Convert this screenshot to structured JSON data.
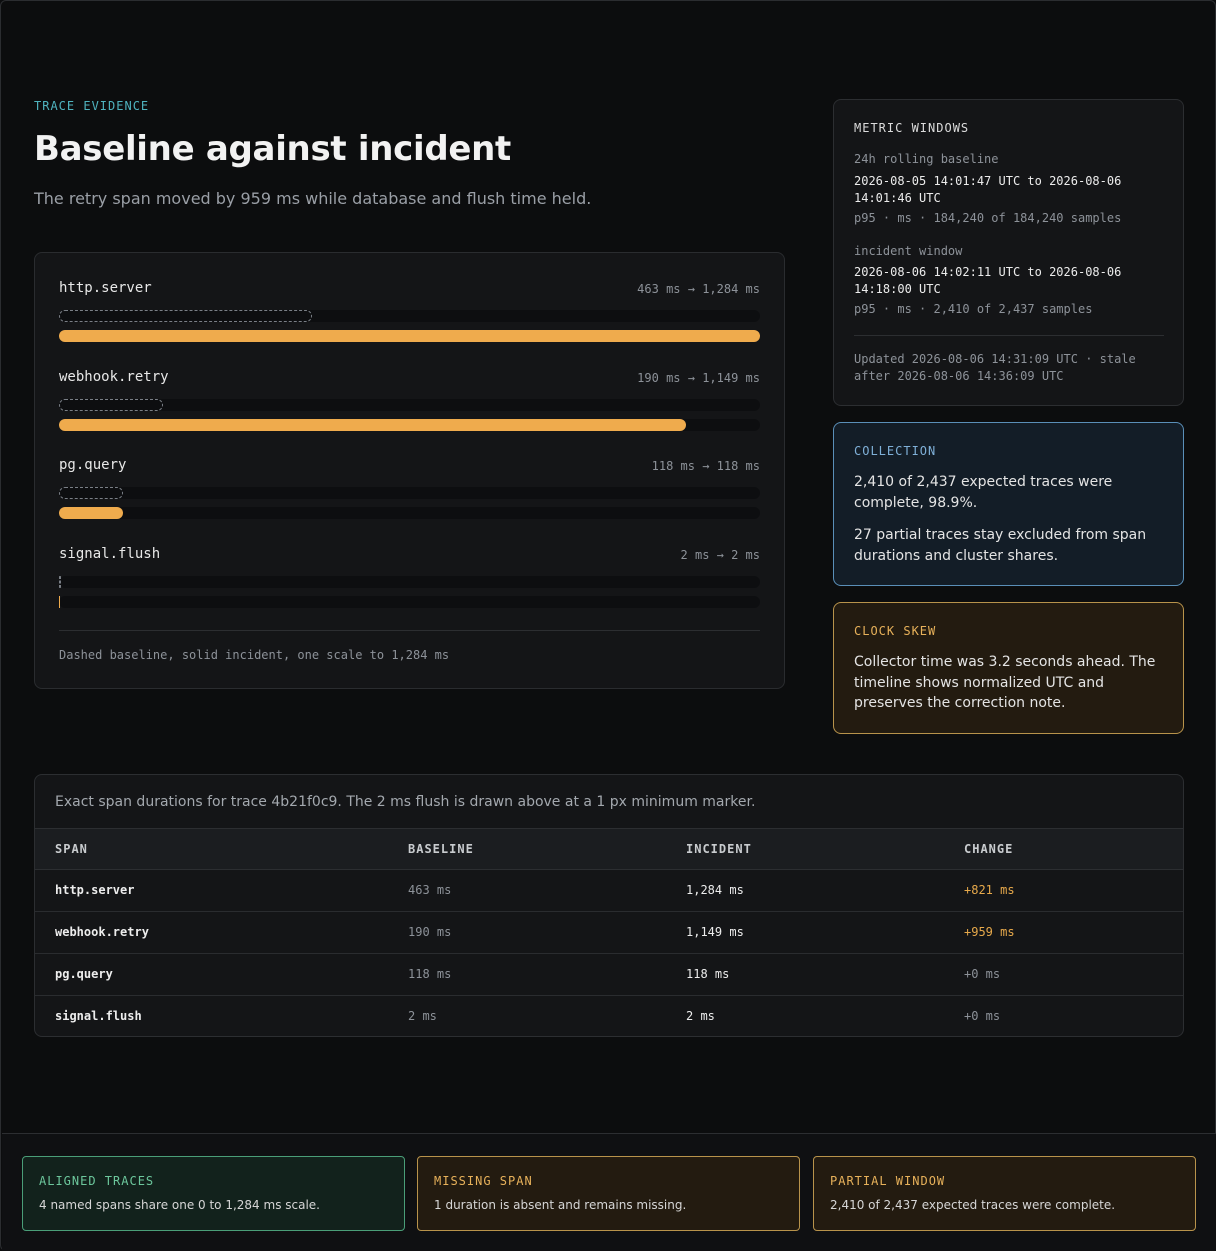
{
  "header": {
    "eyebrow": "TRACE EVIDENCE",
    "title": "Baseline against incident",
    "subtitle": "The retry span moved by 959 ms while database and flush time held."
  },
  "chart_data": {
    "type": "bar",
    "title": "",
    "scale_max_ms": 1284,
    "categories": [
      "http.server",
      "webhook.retry",
      "pg.query",
      "signal.flush"
    ],
    "series": [
      {
        "name": "baseline",
        "style": "dashed",
        "values": [
          463,
          190,
          118,
          2
        ]
      },
      {
        "name": "incident",
        "style": "solid",
        "values": [
          1284,
          1149,
          118,
          2
        ]
      }
    ],
    "range_labels": [
      "463 ms → 1,284 ms",
      "190 ms → 1,149 ms",
      "118 ms → 118 ms",
      "2 ms → 2 ms"
    ],
    "note": "Dashed baseline, solid incident, one scale to 1,284 ms",
    "colors": {
      "incident": "#efab4d",
      "baseline": "#7a7f86",
      "track": "#0d0e10"
    }
  },
  "metric_windows": {
    "title": "METRIC WINDOWS",
    "baseline_label": "24h rolling baseline",
    "baseline_range": "2026-08-05 14:01:47 UTC to 2026-08-06 14:01:46 UTC",
    "baseline_meta": "p95 · ms · 184,240 of 184,240 samples",
    "incident_label": "incident window",
    "incident_range": "2026-08-06 14:02:11 UTC to 2026-08-06 14:18:00 UTC",
    "incident_meta": "p95 · ms · 2,410 of 2,437 samples",
    "updated": "Updated 2026-08-06 14:31:09 UTC · stale after 2026-08-06 14:36:09 UTC"
  },
  "collection": {
    "title": "COLLECTION",
    "line1": "2,410 of 2,437 expected traces were complete, 98.9%.",
    "line2": "27 partial traces stay excluded from span durations and cluster shares.",
    "color": "#7fb0d8"
  },
  "clock_skew": {
    "title": "CLOCK SKEW",
    "text": "Collector time was 3.2 seconds ahead. The timeline shows normalized UTC and preserves the correction note.",
    "color": "#e7b15a"
  },
  "table": {
    "caption": "Exact span durations for trace 4b21f0c9. The 2 ms flush is drawn above at a 1 px minimum marker.",
    "headers": [
      "SPAN",
      "BASELINE",
      "INCIDENT",
      "CHANGE"
    ],
    "rows": [
      {
        "span": "http.server",
        "baseline": "463 ms",
        "incident": "1,284 ms",
        "change": "+821 ms",
        "changed": true
      },
      {
        "span": "webhook.retry",
        "baseline": "190 ms",
        "incident": "1,149 ms",
        "change": "+959 ms",
        "changed": true
      },
      {
        "span": "pg.query",
        "baseline": "118 ms",
        "incident": "118 ms",
        "change": "+0 ms",
        "changed": false
      },
      {
        "span": "signal.flush",
        "baseline": "2 ms",
        "incident": "2 ms",
        "change": "+0 ms",
        "changed": false
      }
    ],
    "colors": {
      "changed": "#e7a94b",
      "unchanged": "#8d9299"
    }
  },
  "footer": {
    "badges": [
      {
        "title": "ALIGNED TRACES",
        "text": "4 named spans share one 0 to 1,284 ms scale.",
        "color": "#6cc79c"
      },
      {
        "title": "MISSING SPAN",
        "text": "1 duration is absent and remains missing.",
        "color": "#e7b15a"
      },
      {
        "title": "PARTIAL WINDOW",
        "text": "2,410 of 2,437 expected traces were complete.",
        "color": "#e7b15a"
      }
    ]
  }
}
